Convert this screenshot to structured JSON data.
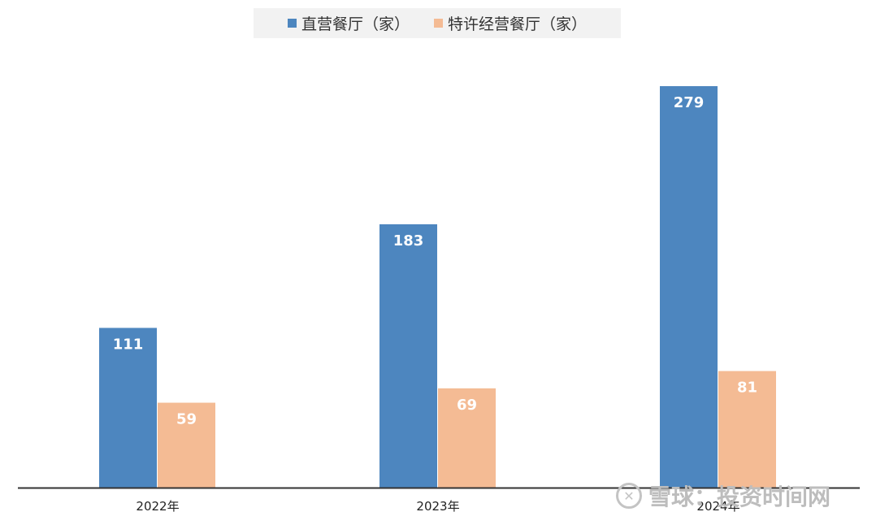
{
  "chart_data": {
    "type": "bar",
    "categories": [
      "2022年",
      "2023年",
      "2024年"
    ],
    "series": [
      {
        "name": "直营餐厅（家）",
        "values": [
          111,
          183,
          279
        ],
        "color": "#4d86bf"
      },
      {
        "name": "特许经营餐厅（家）",
        "values": [
          59,
          69,
          81
        ],
        "color": "#f4bb94"
      }
    ],
    "ylim": [
      0,
      300
    ],
    "grid": false,
    "legend": "top-center",
    "data_labels": true,
    "label_color": "#ffffff"
  },
  "watermark": {
    "logo_text": "✕",
    "text": "雪球：投资时间网"
  }
}
